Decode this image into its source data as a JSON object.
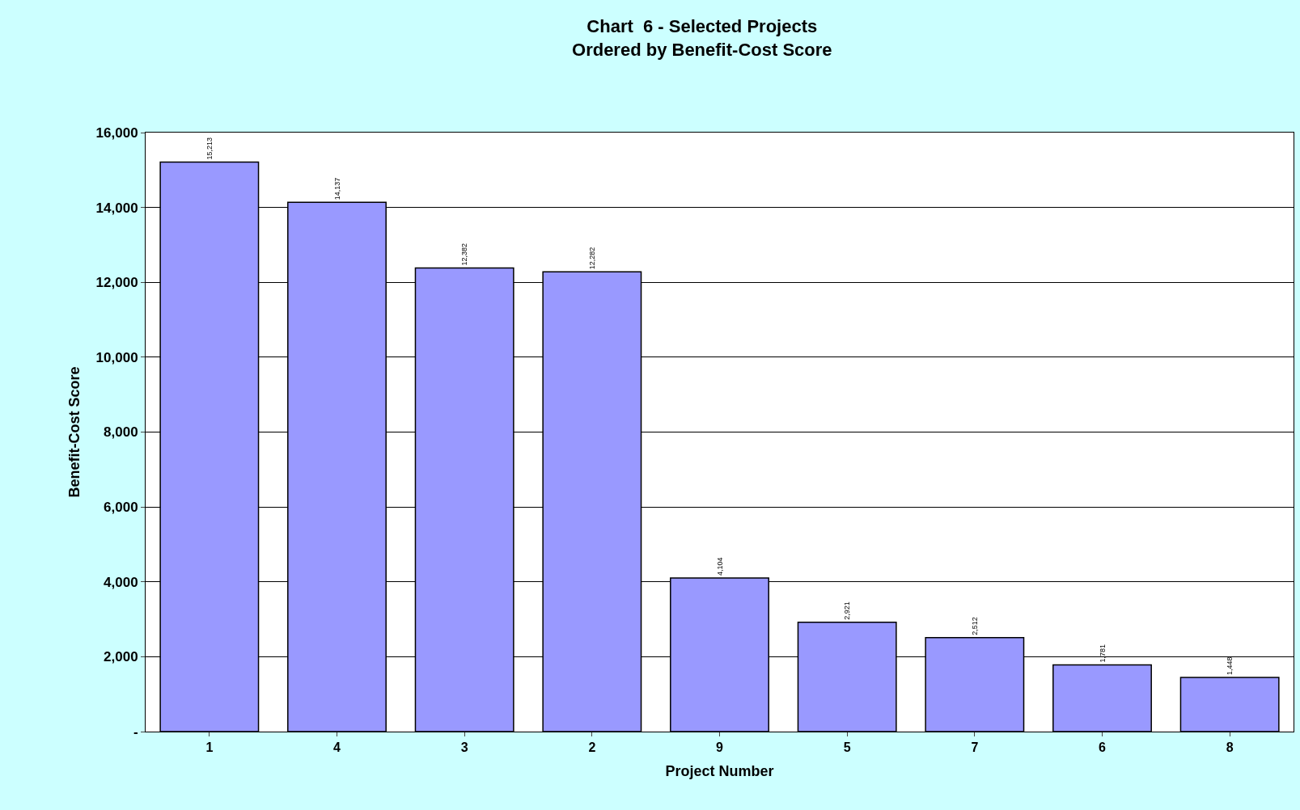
{
  "chart_data": {
    "type": "bar",
    "title": "Chart  6 - Selected Projects\nOrdered by Benefit-Cost Score",
    "xlabel": "Project Number",
    "ylabel": "Benefit-Cost Score",
    "categories": [
      "1",
      "4",
      "3",
      "2",
      "9",
      "5",
      "7",
      "6",
      "8"
    ],
    "values": [
      15213,
      14137,
      12382,
      12282,
      4104,
      2921,
      2512,
      1781,
      1448
    ],
    "value_labels": [
      "15,213",
      "14,137",
      "12,382",
      "12,282",
      "4,104",
      "2,921",
      "2,512",
      "1,781",
      "1,448"
    ],
    "color": "#9999ff",
    "ylim": [
      0,
      16000
    ],
    "yticks": [
      {
        "value": 0,
        "label": "-"
      },
      {
        "value": 2000,
        "label": "2,000"
      },
      {
        "value": 4000,
        "label": "4,000"
      },
      {
        "value": 6000,
        "label": "6,000"
      },
      {
        "value": 8000,
        "label": "8,000"
      },
      {
        "value": 10000,
        "label": "10,000"
      },
      {
        "value": 12000,
        "label": "12,000"
      },
      {
        "value": 14000,
        "label": "14,000"
      },
      {
        "value": 16000,
        "label": "16,000"
      }
    ],
    "grid": "y",
    "legend": false
  }
}
